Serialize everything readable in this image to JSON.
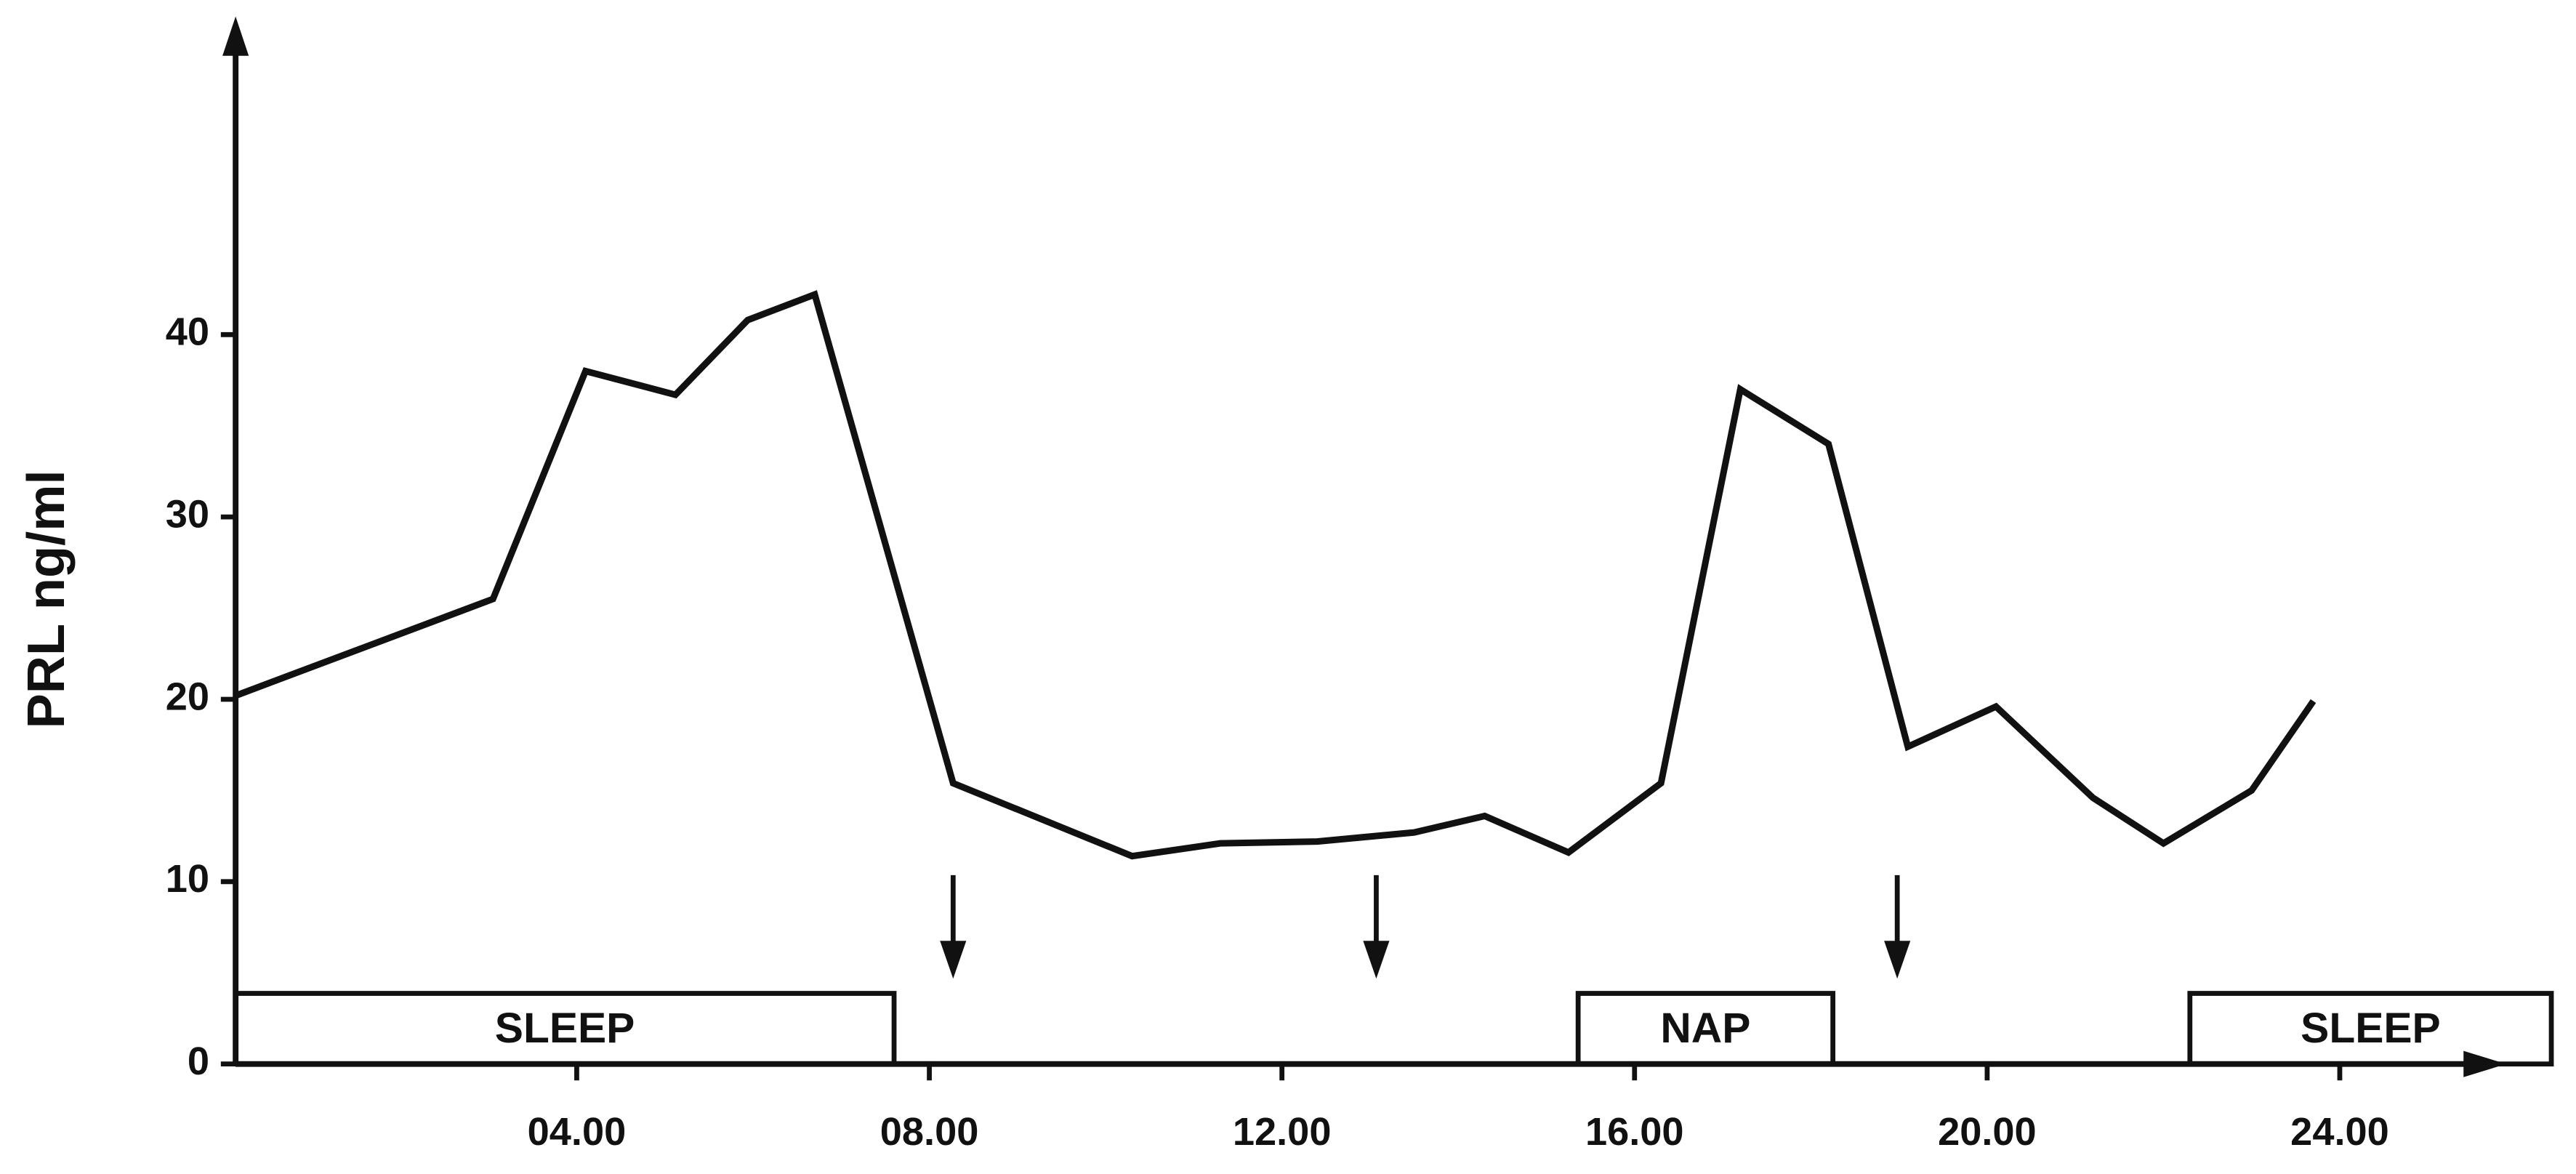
{
  "chart_data": {
    "type": "line",
    "ylabel": "PRL ng/ml",
    "x": [
      0.13,
      3.05,
      4.1,
      5.12,
      5.94,
      6.7,
      8.27,
      10.3,
      11.3,
      12.4,
      13.5,
      14.3,
      15.25,
      16.3,
      17.2,
      18.2,
      19.1,
      20.1,
      21.2,
      22.0,
      23.0,
      23.7
    ],
    "series": [
      {
        "color": "#111111",
        "values": [
          20.2,
          25.5,
          38.0,
          36.7,
          40.8,
          42.2,
          15.4,
          11.4,
          12.1,
          12.2,
          12.7,
          13.6,
          11.6,
          15.4,
          37.0,
          34.0,
          17.4,
          19.6,
          14.6,
          12.1,
          15.0,
          19.9
        ]
      }
    ],
    "xlim": [
      0,
      26
    ],
    "ylim": [
      0,
      57
    ],
    "xticks": [
      {
        "value": 4,
        "label": "04.00"
      },
      {
        "value": 8,
        "label": "08.00"
      },
      {
        "value": 12,
        "label": "12.00"
      },
      {
        "value": 16,
        "label": "16.00"
      },
      {
        "value": 20,
        "label": "20.00"
      },
      {
        "value": 24,
        "label": "24.00"
      }
    ],
    "yticks": [
      0,
      10,
      20,
      30,
      40
    ],
    "bands": [
      {
        "label": "SLEEP",
        "start": 0.13,
        "end": 7.6
      },
      {
        "label": "NAP",
        "start": 15.36,
        "end": 18.25
      },
      {
        "label": "SLEEP",
        "start": 22.3,
        "end": 26.4
      }
    ],
    "arrows": [
      8.27,
      13.07,
      18.98
    ]
  }
}
